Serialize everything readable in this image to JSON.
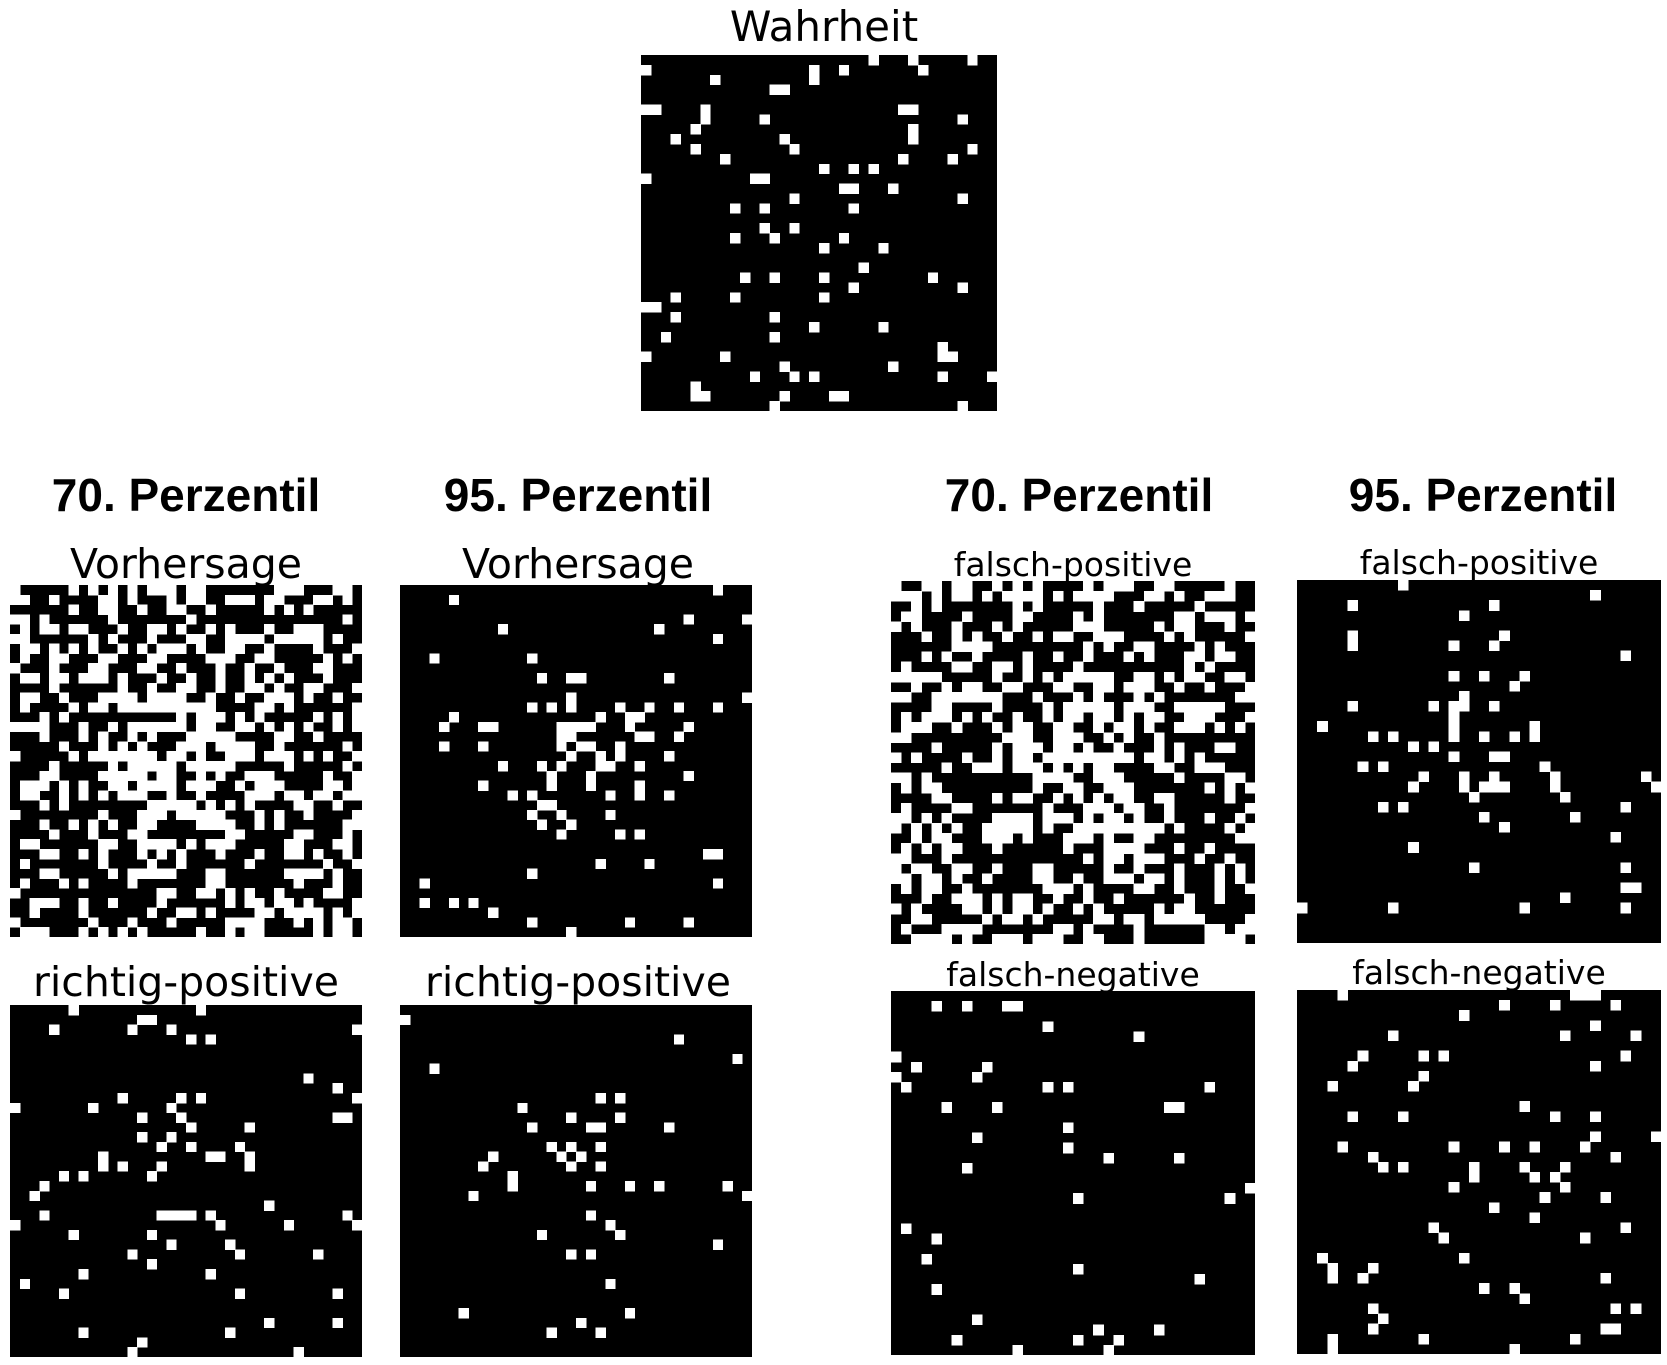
{
  "figure": {
    "truth_title": "Wahrheit",
    "columns": [
      {
        "heading": "70. Perzentil"
      },
      {
        "heading": "95. Perzentil"
      },
      {
        "heading": "70. Perzentil"
      },
      {
        "heading": "95. Perzentil"
      }
    ],
    "panel_titles": {
      "prediction": "Vorhersage",
      "true_positive": "richtig-positive",
      "false_positive": "falsch-positive",
      "false_negative": "falsch-negative"
    }
  },
  "colors": {
    "on": "#ffffff",
    "off": "#000000"
  },
  "panels": {
    "truth": {
      "grid": 36,
      "density": 0.065,
      "center_boost": 0.05,
      "seed": 11
    },
    "pred70": {
      "grid": 36,
      "density": 0.34,
      "center_boost": 0.45,
      "seed": 23
    },
    "pred95": {
      "grid": 36,
      "density": 0.035,
      "center_boost": 0.32,
      "seed": 37
    },
    "tp70": {
      "grid": 36,
      "density": 0.045,
      "center_boost": 0.22,
      "seed": 41
    },
    "tp95": {
      "grid": 36,
      "density": 0.02,
      "center_boost": 0.18,
      "seed": 53
    },
    "fp70": {
      "grid": 36,
      "density": 0.33,
      "center_boost": 0.4,
      "seed": 67
    },
    "fp95": {
      "grid": 36,
      "density": 0.03,
      "center_boost": 0.28,
      "seed": 71
    },
    "fn70": {
      "grid": 36,
      "density": 0.028,
      "center_boost": 0.0,
      "seed": 83
    },
    "fn95": {
      "grid": 36,
      "density": 0.055,
      "center_boost": 0.05,
      "seed": 97
    }
  }
}
